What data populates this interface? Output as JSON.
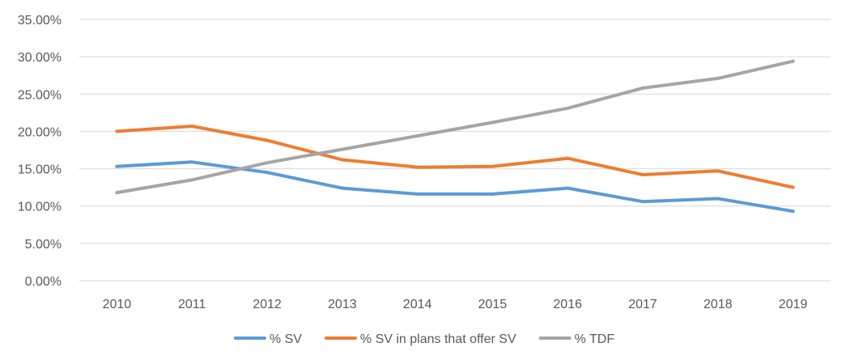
{
  "chart_data": {
    "type": "line",
    "categories": [
      "2010",
      "2011",
      "2012",
      "2013",
      "2014",
      "2015",
      "2016",
      "2017",
      "2018",
      "2019"
    ],
    "series": [
      {
        "name": "% SV",
        "color": "#5b9bd5",
        "values": [
          15.3,
          15.9,
          14.5,
          12.4,
          11.6,
          11.6,
          12.4,
          10.6,
          11.0,
          9.3
        ]
      },
      {
        "name": "% SV in plans that offer SV",
        "color": "#ed7d31",
        "values": [
          20.0,
          20.7,
          18.8,
          16.2,
          15.2,
          15.3,
          16.4,
          14.2,
          14.7,
          12.5
        ]
      },
      {
        "name": "% TDF",
        "color": "#a5a5a5",
        "values": [
          11.8,
          13.5,
          15.8,
          17.6,
          19.4,
          21.2,
          23.1,
          25.8,
          27.1,
          29.4
        ]
      }
    ],
    "yticks": [
      "0.00%",
      "5.00%",
      "10.00%",
      "15.00%",
      "20.00%",
      "25.00%",
      "30.00%",
      "35.00%"
    ],
    "ylim": [
      0,
      35
    ],
    "grid": true,
    "legend_position": "bottom",
    "title": "",
    "xlabel": "",
    "ylabel": ""
  }
}
